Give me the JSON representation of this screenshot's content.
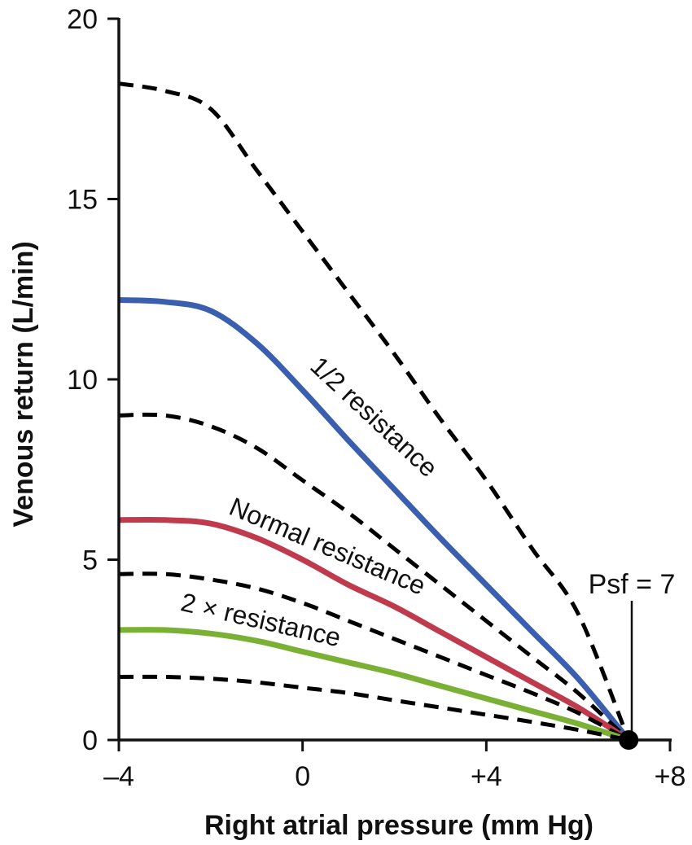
{
  "chart_data": {
    "type": "line",
    "title": "",
    "xlabel": "Right atrial pressure (mm Hg)",
    "ylabel": "Venous return (L/min)",
    "xlim": [
      -4,
      8
    ],
    "ylim": [
      0,
      20
    ],
    "x_ticks": [
      -4,
      0,
      4,
      8
    ],
    "x_tick_labels": [
      "–4",
      "0",
      "+4",
      "+8"
    ],
    "y_ticks": [
      0,
      5,
      10,
      15,
      20
    ],
    "y_tick_labels": [
      "0",
      "5",
      "10",
      "15",
      "20"
    ],
    "grid": false,
    "series": [
      {
        "name": "",
        "style": "dashed",
        "color": "#000000",
        "x": [
          -4,
          -3,
          -2,
          -1,
          0,
          1,
          2,
          3,
          4,
          5,
          6,
          7.1
        ],
        "y": [
          18.2,
          18.0,
          17.5,
          15.8,
          14.1,
          12.4,
          10.7,
          8.9,
          7.2,
          5.3,
          3.5,
          0
        ]
      },
      {
        "name": "1/2 resistance",
        "style": "solid",
        "color": "#3a5fae",
        "x": [
          -4,
          -3,
          -2,
          -1,
          0,
          1,
          2,
          3,
          4,
          5,
          6,
          7.1
        ],
        "y": [
          12.2,
          12.15,
          11.9,
          11.0,
          9.7,
          8.3,
          6.95,
          5.6,
          4.3,
          3.0,
          1.7,
          0
        ]
      },
      {
        "name": "",
        "style": "dashed",
        "color": "#000000",
        "x": [
          -4,
          -3,
          -2,
          -1,
          0,
          1,
          2,
          3,
          4,
          5,
          6,
          7.1
        ],
        "y": [
          9.0,
          9.0,
          8.7,
          8.1,
          7.2,
          6.3,
          5.3,
          4.3,
          3.3,
          2.3,
          1.3,
          0
        ]
      },
      {
        "name": "Normal resistance",
        "style": "solid",
        "color": "#c03a4d",
        "x": [
          -4,
          -3,
          -2,
          -1,
          0,
          1,
          2,
          3,
          4,
          5,
          6,
          7.1
        ],
        "y": [
          6.1,
          6.1,
          6.0,
          5.6,
          5.0,
          4.3,
          3.7,
          3.0,
          2.3,
          1.6,
          0.9,
          0
        ]
      },
      {
        "name": "",
        "style": "dashed",
        "color": "#000000",
        "x": [
          -4,
          -3,
          -2,
          -1,
          0,
          1,
          2,
          3,
          4,
          5,
          6,
          7.1
        ],
        "y": [
          4.6,
          4.6,
          4.45,
          4.2,
          3.8,
          3.3,
          2.8,
          2.3,
          1.8,
          1.3,
          0.75,
          0
        ]
      },
      {
        "name": "2 × resistance",
        "style": "solid",
        "color": "#7ab135",
        "x": [
          -4,
          -3,
          -2,
          -1,
          0,
          1,
          2,
          3,
          4,
          5,
          6,
          7.1
        ],
        "y": [
          3.05,
          3.05,
          2.95,
          2.75,
          2.45,
          2.15,
          1.85,
          1.5,
          1.15,
          0.8,
          0.45,
          0
        ]
      },
      {
        "name": "",
        "style": "dashed",
        "color": "#000000",
        "x": [
          -4,
          -3,
          -2,
          -1,
          0,
          1,
          2,
          3,
          4,
          5,
          6,
          7.1
        ],
        "y": [
          1.75,
          1.75,
          1.7,
          1.6,
          1.45,
          1.3,
          1.1,
          0.9,
          0.7,
          0.5,
          0.28,
          0
        ]
      }
    ],
    "annotations": [
      {
        "text": "Psf = 7",
        "x": 7.1,
        "y": 0,
        "marker": "filled-circle"
      }
    ]
  }
}
